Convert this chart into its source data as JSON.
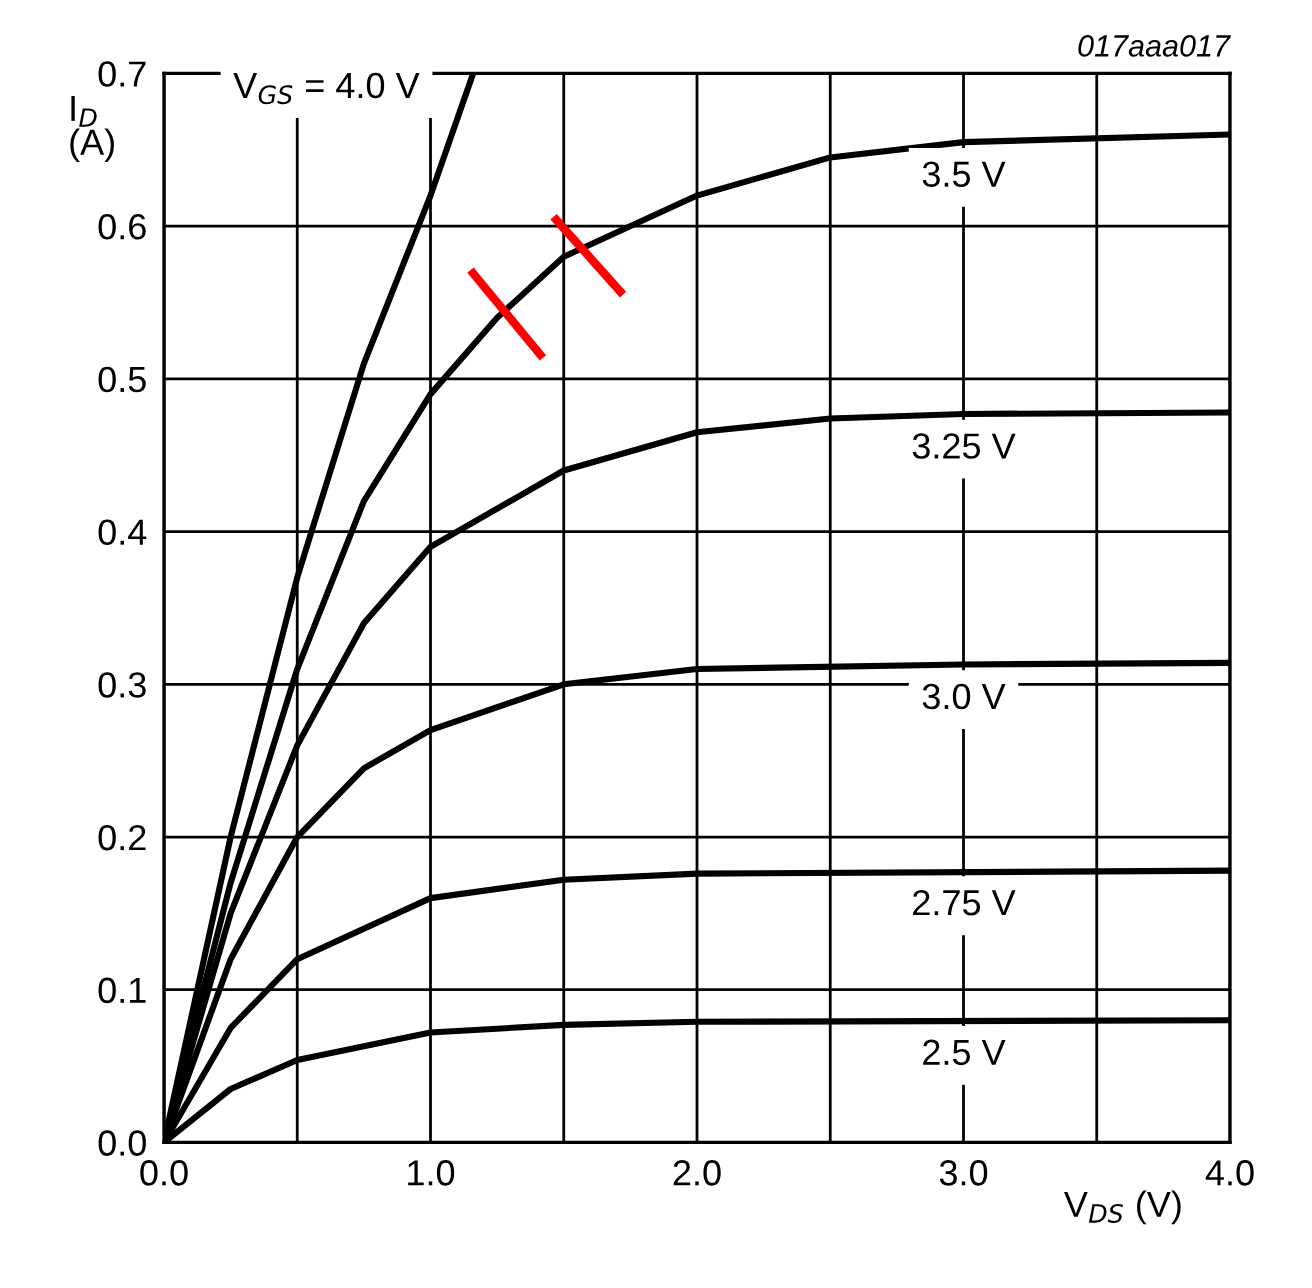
{
  "chart_data": {
    "type": "line",
    "xlabel": "V$_{DS}$ (V)",
    "ylabel": "I$_{D}$\n(A)",
    "annotations": [
      "017aaa017"
    ],
    "xlim": [
      0,
      4
    ],
    "ylim": [
      0,
      0.7
    ],
    "xticks": [
      {
        "value": 0,
        "label": "0.0"
      },
      {
        "value": 0.5,
        "label": null
      },
      {
        "value": 1,
        "label": "1.0"
      },
      {
        "value": 1.5,
        "label": null
      },
      {
        "value": 2,
        "label": "2.0"
      },
      {
        "value": 2.5,
        "label": null
      },
      {
        "value": 3,
        "label": "3.0"
      },
      {
        "value": 3.5,
        "label": null
      },
      {
        "value": 4,
        "label": "4.0"
      }
    ],
    "yticks": [
      {
        "value": 0,
        "label": "0.0"
      },
      0.1,
      0.2,
      0.3,
      0.4,
      0.5,
      0.6,
      0.7
    ],
    "grid": true,
    "legend": false,
    "marker": "none",
    "line_style": "solid",
    "series": [
      {
        "name": "V$_{GS}$ = 4.0 V",
        "color": "#000000",
        "x": [
          0,
          0.25,
          0.5,
          0.75,
          1.0,
          1.16
        ],
        "values": [
          0,
          0.2,
          0.37,
          0.51,
          0.62,
          0.7
        ]
      },
      {
        "name": "3.5 V",
        "color": "#000000",
        "x": [
          0,
          0.25,
          0.5,
          0.75,
          1.0,
          1.25,
          1.5,
          2.0,
          2.5,
          3.0,
          4.0
        ],
        "values": [
          0,
          0.17,
          0.31,
          0.42,
          0.49,
          0.54,
          0.58,
          0.62,
          0.645,
          0.655,
          0.66
        ]
      },
      {
        "name": "3.25 V",
        "color": "#000000",
        "x": [
          0,
          0.25,
          0.5,
          0.75,
          1.0,
          1.5,
          2.0,
          2.5,
          3.0,
          4.0
        ],
        "values": [
          0,
          0.15,
          0.26,
          0.34,
          0.39,
          0.44,
          0.465,
          0.474,
          0.477,
          0.478
        ]
      },
      {
        "name": "3.0 V",
        "color": "#000000",
        "x": [
          0,
          0.25,
          0.5,
          0.75,
          1.0,
          1.5,
          2.0,
          3.0,
          4.0
        ],
        "values": [
          0,
          0.12,
          0.2,
          0.245,
          0.27,
          0.3,
          0.31,
          0.313,
          0.314
        ]
      },
      {
        "name": "2.75 V",
        "color": "#000000",
        "x": [
          0,
          0.25,
          0.5,
          1.0,
          1.5,
          2.0,
          4.0
        ],
        "values": [
          0,
          0.075,
          0.12,
          0.16,
          0.172,
          0.176,
          0.178
        ]
      },
      {
        "name": "2.5 V",
        "color": "#000000",
        "x": [
          0,
          0.25,
          0.5,
          1.0,
          1.5,
          2.0,
          4.0
        ],
        "values": [
          0,
          0.035,
          0.054,
          0.072,
          0.077,
          0.079,
          0.08
        ]
      }
    ]
  }
}
